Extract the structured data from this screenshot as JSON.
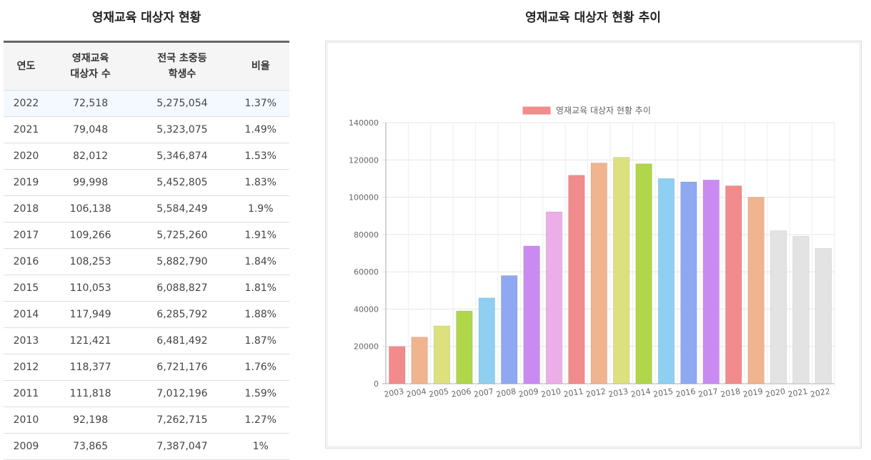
{
  "table": {
    "title": "영재교육 대상자 현황",
    "headers": [
      "연도",
      "영재교육\n대상자 수",
      "전국 초중등\n학생수",
      "비율"
    ],
    "rows": [
      [
        "2022",
        "72,518",
        "5,275,054",
        "1.37%"
      ],
      [
        "2021",
        "79,048",
        "5,323,075",
        "1.49%"
      ],
      [
        "2020",
        "82,012",
        "5,346,874",
        "1.53%"
      ],
      [
        "2019",
        "99,998",
        "5,452,805",
        "1.83%"
      ],
      [
        "2018",
        "106,138",
        "5,584,249",
        "1.9%"
      ],
      [
        "2017",
        "109,266",
        "5,725,260",
        "1.91%"
      ],
      [
        "2016",
        "108,253",
        "5,882,790",
        "1.84%"
      ],
      [
        "2015",
        "110,053",
        "6,088,827",
        "1.81%"
      ],
      [
        "2014",
        "117,949",
        "6,285,792",
        "1.88%"
      ],
      [
        "2013",
        "121,421",
        "6,481,492",
        "1.87%"
      ],
      [
        "2012",
        "118,377",
        "6,721,176",
        "1.76%"
      ],
      [
        "2011",
        "111,818",
        "7,012,196",
        "1.59%"
      ],
      [
        "2010",
        "92,198",
        "7,262,715",
        "1.27%"
      ],
      [
        "2009",
        "73,865",
        "7,387,047",
        "1%"
      ]
    ]
  },
  "chart_data": {
    "type": "bar",
    "title": "영재교육 대상자 현황 추이",
    "legend": "영재교육 대상자 현황 추이",
    "legend_position": "top",
    "categories": [
      "2003",
      "2004",
      "2005",
      "2006",
      "2007",
      "2008",
      "2009",
      "2010",
      "2011",
      "2012",
      "2013",
      "2014",
      "2015",
      "2016",
      "2017",
      "2018",
      "2019",
      "2020",
      "2021",
      "2022"
    ],
    "values": [
      19974,
      25000,
      31000,
      39000,
      46000,
      58000,
      73865,
      92198,
      111818,
      118377,
      121421,
      117949,
      110053,
      108253,
      109266,
      106138,
      99998,
      82012,
      79048,
      72518
    ],
    "colors": [
      "#f28b8b",
      "#f0b48e",
      "#dce07e",
      "#b0d64a",
      "#8ecff2",
      "#8fa8f2",
      "#c98bf2",
      "#ecaee6",
      "#f28b8b",
      "#f0b48e",
      "#dce07e",
      "#b0d64a",
      "#8ecff2",
      "#8fa8f2",
      "#c98bf2",
      "#f28b8b",
      "#f0b48e",
      "#e3e3e3",
      "#e3e3e3",
      "#e3e3e3"
    ],
    "ylim": [
      0,
      140000
    ],
    "yticks": [
      0,
      20000,
      40000,
      60000,
      80000,
      100000,
      120000,
      140000
    ],
    "grid": true,
    "xlabel": "",
    "ylabel": ""
  }
}
